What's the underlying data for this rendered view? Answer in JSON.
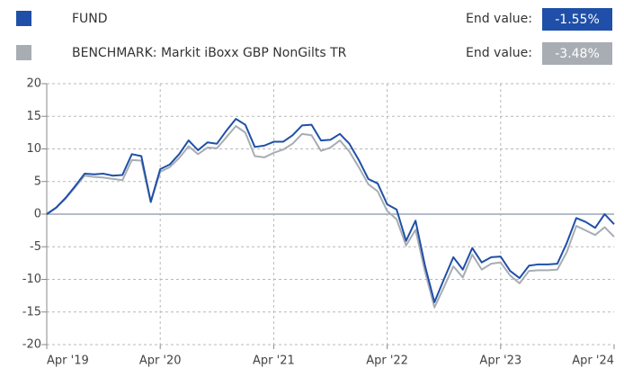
{
  "chart_data": {
    "type": "line",
    "end_value_caption": "End value:",
    "x": [
      "2019-04",
      "2019-05",
      "2019-06",
      "2019-07",
      "2019-08",
      "2019-09",
      "2019-10",
      "2019-11",
      "2019-12",
      "2020-01",
      "2020-02",
      "2020-03",
      "2020-04",
      "2020-05",
      "2020-06",
      "2020-07",
      "2020-08",
      "2020-09",
      "2020-10",
      "2020-11",
      "2020-12",
      "2021-01",
      "2021-02",
      "2021-03",
      "2021-04",
      "2021-05",
      "2021-06",
      "2021-07",
      "2021-08",
      "2021-09",
      "2021-10",
      "2021-11",
      "2021-12",
      "2022-01",
      "2022-02",
      "2022-03",
      "2022-04",
      "2022-05",
      "2022-06",
      "2022-07",
      "2022-08",
      "2022-09",
      "2022-10",
      "2022-11",
      "2022-12",
      "2023-01",
      "2023-02",
      "2023-03",
      "2023-04",
      "2023-05",
      "2023-06",
      "2023-07",
      "2023-08",
      "2023-09",
      "2023-10",
      "2023-11",
      "2023-12",
      "2024-01",
      "2024-02",
      "2024-03",
      "2024-04"
    ],
    "series": [
      {
        "name": "FUND",
        "color": "#1f4fa8",
        "end_value": -1.55,
        "end_value_label": "-1.55%",
        "values": [
          0,
          1,
          2.5,
          4.3,
          6.2,
          6.1,
          6.2,
          5.9,
          6.0,
          9.2,
          8.9,
          1.9,
          6.9,
          7.6,
          9.2,
          11.3,
          9.8,
          11,
          10.8,
          12.8,
          14.6,
          13.7,
          10.3,
          10.5,
          11.1,
          11.1,
          12.1,
          13.6,
          13.7,
          11.3,
          11.4,
          12.3,
          10.8,
          8.3,
          5.4,
          4.7,
          1.5,
          0.7,
          -4.1,
          -1,
          -7.9,
          -13.5,
          -10,
          -6.6,
          -8.5,
          -5.2,
          -7.4,
          -6.6,
          -6.5,
          -8.7,
          -9.8,
          -7.9,
          -7.7,
          -7.7,
          -7.6,
          -4.4,
          -0.6,
          -1.2,
          -2.1,
          0,
          -1.55
        ]
      },
      {
        "name": "BENCHMARK: Markit iBoxx GBP NonGilts TR",
        "color": "#a7adb3",
        "end_value": -3.48,
        "end_value_label": "-3.48%",
        "values": [
          0,
          1,
          2.4,
          4.1,
          5.9,
          5.7,
          5.6,
          5.4,
          5.2,
          8.3,
          8.2,
          1.8,
          6.5,
          7.2,
          8.6,
          10.4,
          9.2,
          10.2,
          10.1,
          11.8,
          13.5,
          12.5,
          8.9,
          8.7,
          9.4,
          9.9,
          10.8,
          12.3,
          12.1,
          9.7,
          10.2,
          11.3,
          9.6,
          7.2,
          4.6,
          3.5,
          0.5,
          -0.8,
          -4.8,
          -2.4,
          -8.8,
          -14.3,
          -11.2,
          -8,
          -9.7,
          -6.2,
          -8.5,
          -7.6,
          -7.4,
          -9.4,
          -10.6,
          -8.7,
          -8.6,
          -8.6,
          -8.5,
          -5.8,
          -1.8,
          -2.5,
          -3.2,
          -2,
          -3.48
        ]
      }
    ],
    "xlim": [
      "2019-04",
      "2024-04"
    ],
    "xticks": [
      {
        "value": "2019-04",
        "label": "Apr '19"
      },
      {
        "value": "2020-04",
        "label": "Apr '20"
      },
      {
        "value": "2021-04",
        "label": "Apr '21"
      },
      {
        "value": "2022-04",
        "label": "Apr '22"
      },
      {
        "value": "2023-04",
        "label": "Apr '23"
      },
      {
        "value": "2024-04",
        "label": "Apr '24"
      }
    ],
    "ylim": [
      -20,
      20
    ],
    "yticks": [
      -20,
      -15,
      -10,
      -5,
      0,
      5,
      10,
      15,
      20
    ],
    "grid": true
  }
}
